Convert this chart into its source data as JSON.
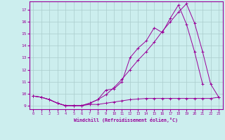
{
  "xlabel": "Windchill (Refroidissement éolien,°C)",
  "x": [
    0,
    1,
    2,
    3,
    4,
    5,
    6,
    7,
    8,
    9,
    10,
    11,
    12,
    13,
    14,
    15,
    16,
    17,
    18,
    19,
    20,
    21,
    22,
    23
  ],
  "line1": [
    9.8,
    9.7,
    9.5,
    9.2,
    9.0,
    9.0,
    9.0,
    9.1,
    9.1,
    9.2,
    9.3,
    9.4,
    9.5,
    9.55,
    9.6,
    9.6,
    9.6,
    9.6,
    9.6,
    9.6,
    9.6,
    9.6,
    9.6,
    9.7
  ],
  "line2": [
    9.8,
    9.7,
    9.5,
    9.2,
    9.0,
    9.0,
    9.0,
    9.2,
    9.5,
    10.3,
    10.4,
    11.0,
    13.0,
    13.8,
    14.4,
    15.5,
    15.1,
    16.3,
    17.4,
    15.8,
    13.5,
    10.8,
    null,
    null
  ],
  "line3": [
    9.8,
    9.7,
    9.5,
    9.2,
    9.0,
    9.0,
    9.0,
    9.2,
    9.5,
    9.9,
    10.5,
    11.2,
    12.0,
    12.8,
    13.5,
    14.3,
    15.2,
    16.0,
    16.8,
    17.5,
    15.9,
    13.5,
    10.8,
    9.7
  ],
  "color": "#990099",
  "bg_color": "#cceeee",
  "grid_color": "#aacccc",
  "ylim": [
    8.7,
    17.7
  ],
  "xlim": [
    -0.5,
    23.5
  ],
  "yticks": [
    9,
    10,
    11,
    12,
    13,
    14,
    15,
    16,
    17
  ],
  "xticks": [
    0,
    1,
    2,
    3,
    4,
    5,
    6,
    7,
    8,
    9,
    10,
    11,
    12,
    13,
    14,
    15,
    16,
    17,
    18,
    19,
    20,
    21,
    22,
    23
  ]
}
